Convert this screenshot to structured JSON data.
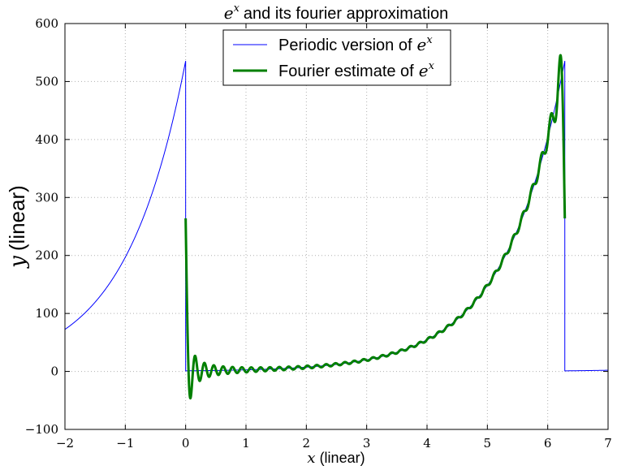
{
  "chart_data": {
    "type": "line",
    "title": "and its fourier approximation",
    "title_math": "e",
    "title_math_sup": "x",
    "xlabel_math": "x",
    "xlabel": "(linear)",
    "ylabel_math": "y",
    "ylabel": "(linear)",
    "xlim": [
      -2,
      7
    ],
    "ylim": [
      -100,
      600
    ],
    "xticks": [
      -2,
      -1,
      0,
      1,
      2,
      3,
      4,
      5,
      6,
      7
    ],
    "xtick_labels": [
      "−2",
      "−1",
      "0",
      "1",
      "2",
      "3",
      "4",
      "5",
      "6",
      "7"
    ],
    "yticks": [
      -100,
      0,
      100,
      200,
      300,
      400,
      500,
      600
    ],
    "ytick_labels": [
      "−100",
      "0",
      "100",
      "200",
      "300",
      "400",
      "500",
      "600"
    ],
    "grid": true,
    "legend_position": "top-center",
    "series": [
      {
        "name": "Periodic version of",
        "name_math": "e",
        "name_math_sup": "x",
        "color": "#0000ff",
        "line_width": 1,
        "formula": "periodic e^x with period 2π: exp(x mod 2π)",
        "x_range": [
          -2,
          7
        ]
      },
      {
        "name": "Fourier estimate of",
        "name_math": "e",
        "name_math_sup": "x",
        "color": "#007f00",
        "line_width": 3,
        "formula": "partial Fourier sum of e^x on [0, 2π], 40 harmonics",
        "x_range": [
          0,
          6.2832
        ],
        "harmonics": 40
      }
    ]
  }
}
